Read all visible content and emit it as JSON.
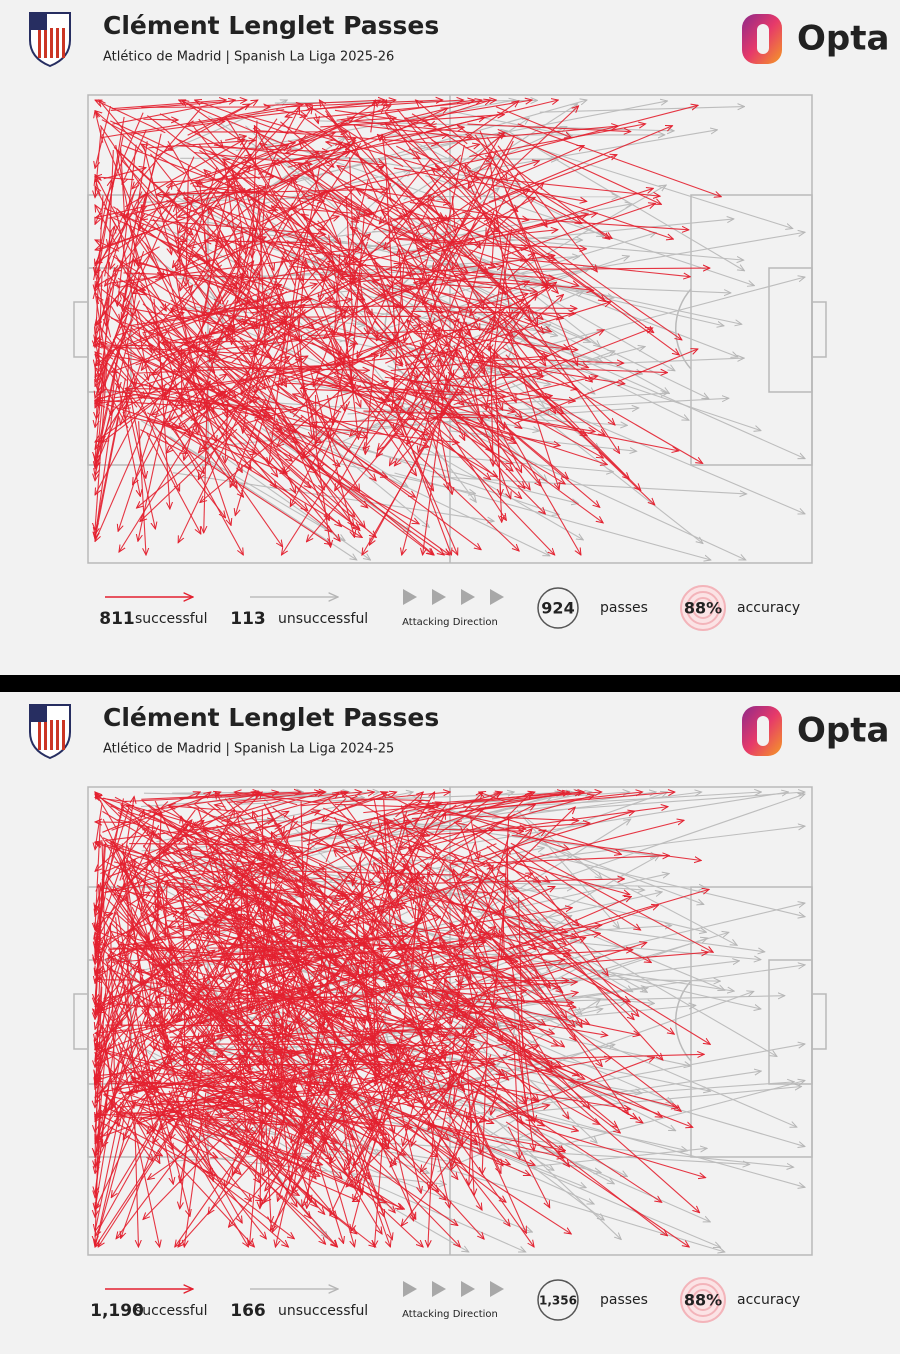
{
  "panels": [
    {
      "title": "Clément Lenglet Passes",
      "subtitle": "Atlético de Madrid | Spanish La Liga 2025-26",
      "brand": "Opta",
      "successful_count": 811,
      "successful_label": "successful",
      "unsuccessful_count": 113,
      "unsuccessful_label": "unsuccessful",
      "direction_label": "Attacking Direction",
      "passes_count": 924,
      "passes_label": "passes",
      "accuracy": {
        "value": 88,
        "label": "88%"
      },
      "accuracy_label": "accuracy"
    },
    {
      "title": "Clément Lenglet Passes",
      "subtitle": "Atlético de Madrid | Spanish La Liga 2024-25",
      "brand": "Opta",
      "successful_count": {
        "value": 1190,
        "label": "1,190"
      },
      "successful_label": "successful",
      "unsuccessful_count": 166,
      "unsuccessful_label": "unsuccessful",
      "direction_label": "Attacking Direction",
      "passes_count": {
        "value": 1356,
        "label": "1,356"
      },
      "passes_label": "passes",
      "accuracy": {
        "value": 88,
        "label": "88%"
      },
      "accuracy_label": "accuracy"
    }
  ]
}
